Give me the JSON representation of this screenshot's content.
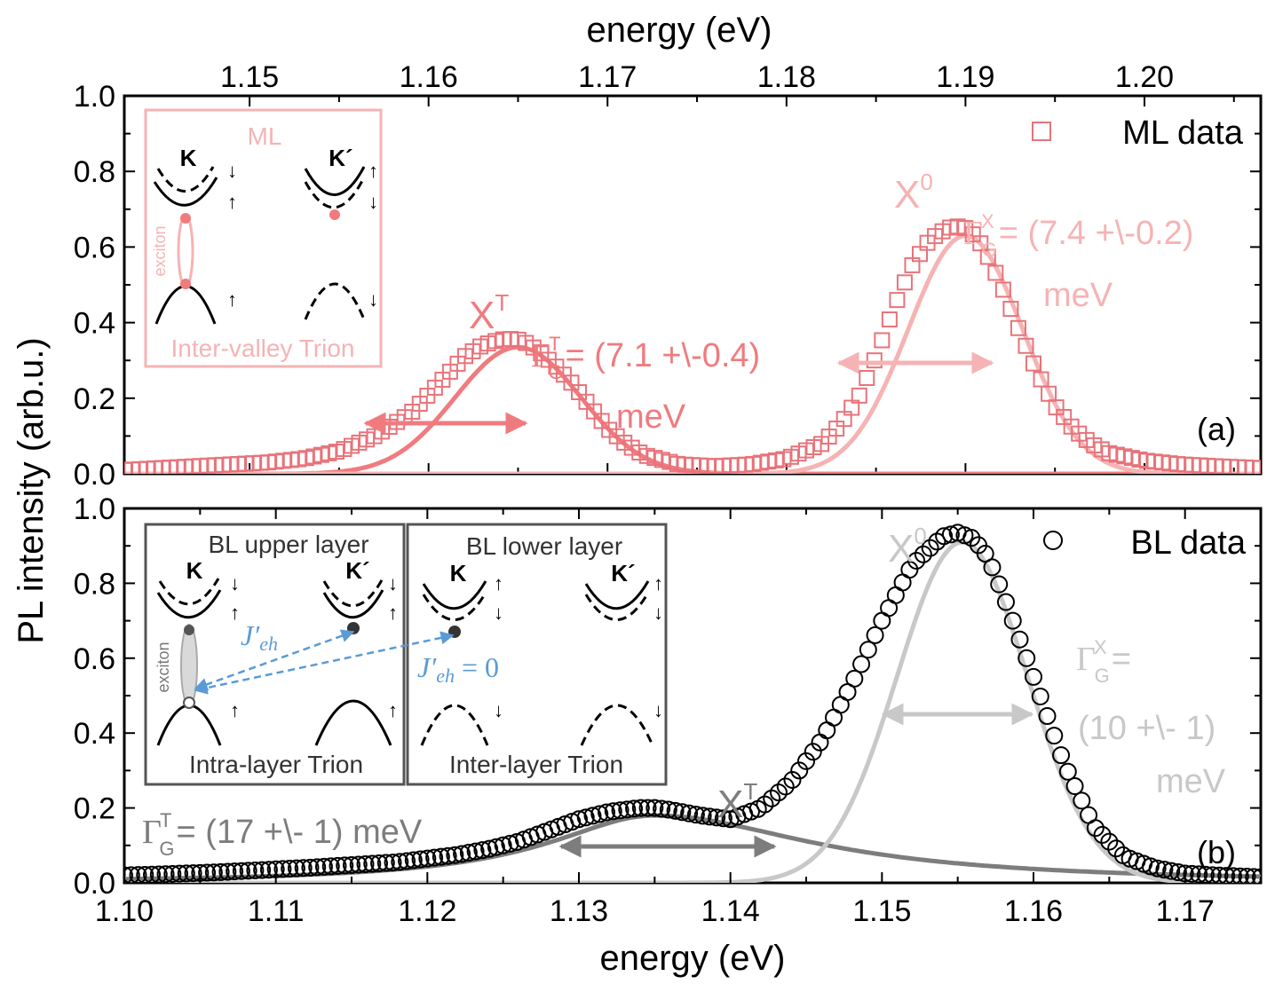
{
  "chart_data": [
    {
      "panel_label": "(a)",
      "type": "scatter",
      "legend": "ML data",
      "legend_position": "top-right",
      "top_axis_title": "energy (eV)",
      "top_xticks": [
        "1.15",
        "1.16",
        "1.17",
        "1.18",
        "1.19",
        "1.20"
      ],
      "xlim": [
        1.143,
        1.2065
      ],
      "ylim": [
        0,
        1.0
      ],
      "yticks": [
        "0.0",
        "0.2",
        "0.4",
        "0.6",
        "0.8",
        "1.0"
      ],
      "colors": {
        "data": "#e8737a",
        "trion_fit": "#f07b7f",
        "exciton_fit": "#f6b3b4"
      },
      "data_points": {
        "x": [
          1.143,
          1.145,
          1.147,
          1.149,
          1.151,
          1.153,
          1.155,
          1.157,
          1.159,
          1.16,
          1.161,
          1.162,
          1.163,
          1.164,
          1.1645,
          1.165,
          1.1655,
          1.166,
          1.167,
          1.168,
          1.169,
          1.17,
          1.171,
          1.172,
          1.174,
          1.176,
          1.178,
          1.18,
          1.182,
          1.183,
          1.184,
          1.185,
          1.186,
          1.187,
          1.188,
          1.189,
          1.1895,
          1.19,
          1.1905,
          1.191,
          1.192,
          1.193,
          1.194,
          1.195,
          1.196,
          1.197,
          1.198,
          1.2,
          1.202,
          1.204,
          1.2065
        ],
        "y": [
          0.01,
          0.015,
          0.02,
          0.025,
          0.03,
          0.04,
          0.06,
          0.1,
          0.16,
          0.21,
          0.26,
          0.31,
          0.34,
          0.355,
          0.357,
          0.355,
          0.345,
          0.33,
          0.29,
          0.24,
          0.18,
          0.12,
          0.08,
          0.05,
          0.025,
          0.02,
          0.025,
          0.04,
          0.08,
          0.13,
          0.2,
          0.31,
          0.44,
          0.55,
          0.62,
          0.65,
          0.655,
          0.65,
          0.63,
          0.6,
          0.5,
          0.38,
          0.27,
          0.18,
          0.12,
          0.08,
          0.055,
          0.035,
          0.025,
          0.02,
          0.015
        ]
      },
      "fits": [
        {
          "name": "X^T",
          "center": 1.165,
          "amplitude": 0.335,
          "sigma": 0.0035
        },
        {
          "name": "X^0",
          "center": 1.19,
          "amplitude": 0.63,
          "sigma": 0.0032
        }
      ]
    },
    {
      "panel_label": "(b)",
      "type": "scatter",
      "legend": "BL data",
      "legend_position": "top-right",
      "bottom_axis_title": "energy (eV)",
      "bottom_xticks": [
        "1.10",
        "1.11",
        "1.12",
        "1.13",
        "1.14",
        "1.15",
        "1.16",
        "1.17"
      ],
      "xlim": [
        1.1,
        1.175
      ],
      "ylim": [
        0,
        1.0
      ],
      "yticks": [
        "0.0",
        "0.2",
        "0.4",
        "0.6",
        "0.8",
        "1.0"
      ],
      "colors": {
        "data": "#000000",
        "trion_fit": "#7d7d7d",
        "exciton_fit": "#c8c8c8"
      },
      "data_points": {
        "x": [
          1.1,
          1.102,
          1.104,
          1.106,
          1.108,
          1.11,
          1.112,
          1.114,
          1.116,
          1.118,
          1.12,
          1.122,
          1.124,
          1.126,
          1.128,
          1.13,
          1.132,
          1.134,
          1.135,
          1.136,
          1.138,
          1.14,
          1.142,
          1.144,
          1.146,
          1.148,
          1.15,
          1.152,
          1.154,
          1.155,
          1.156,
          1.157,
          1.158,
          1.16,
          1.162,
          1.164,
          1.166,
          1.168,
          1.17,
          1.172,
          1.175
        ],
        "y": [
          0.02,
          0.022,
          0.025,
          0.028,
          0.032,
          0.036,
          0.04,
          0.045,
          0.05,
          0.055,
          0.065,
          0.075,
          0.09,
          0.11,
          0.14,
          0.17,
          0.19,
          0.2,
          0.2,
          0.195,
          0.18,
          0.17,
          0.2,
          0.27,
          0.38,
          0.53,
          0.7,
          0.85,
          0.925,
          0.935,
          0.92,
          0.87,
          0.77,
          0.55,
          0.32,
          0.15,
          0.07,
          0.04,
          0.025,
          0.02,
          0.015
        ]
      },
      "fits": [
        {
          "name": "X^T",
          "center": 1.135,
          "amplitude": 0.18,
          "width": 0.0085,
          "shape": "asymmetric"
        },
        {
          "name": "X^0",
          "center": 1.1553,
          "amplitude": 0.91,
          "sigma": 0.0043
        }
      ]
    }
  ],
  "panel_a_labels": {
    "xt_label": "X",
    "xt_sup": "T",
    "x0_label": "X",
    "x0_sup": "0",
    "gamma_t": {
      "sym": "Γ",
      "sup": "T",
      "sub": "G",
      "value": "= (7.1 +\\-0.4)",
      "unit": "meV"
    },
    "gamma_x": {
      "sym": "Γ",
      "sup": "X",
      "sub": "G",
      "value": "= (7.4 +\\-0.2)",
      "unit": "meV"
    }
  },
  "panel_b_labels": {
    "xt_label": "X",
    "xt_sup": "T",
    "x0_label": "X",
    "x0_sup": "0",
    "gamma_t": {
      "sym": "Γ",
      "sup": "T",
      "sub": "G",
      "value": "= (17 +\\- 1) meV"
    },
    "gamma_x": {
      "sym": "Γ",
      "sup": "X",
      "sub": "G",
      "value": "=",
      "value2": "(10 +\\- 1)",
      "unit": "meV"
    }
  },
  "y_axis_title": "PL intensity (arb.u.)",
  "inset_ml": {
    "title": "ML",
    "valley_left": "K",
    "valley_right": "K´",
    "exciton": "exciton",
    "caption": "Inter-valley Trion",
    "arrow_up": "↑",
    "arrow_down": "↓"
  },
  "inset_bl_upper": {
    "title": "BL upper layer",
    "valley_left": "K",
    "valley_right": "K´",
    "exciton": "exciton",
    "caption": "Intra-layer Trion",
    "coupling_j": "J",
    "coupling_prime": "′",
    "coupling_sub": "eh"
  },
  "inset_bl_lower": {
    "title": "BL lower layer",
    "valley_left": "K",
    "valley_right": "K´",
    "caption": "Inter-layer Trion",
    "coupling_j": "J",
    "coupling_prime": "′",
    "coupling_sub": "eh",
    "coupling_value": " = 0"
  }
}
